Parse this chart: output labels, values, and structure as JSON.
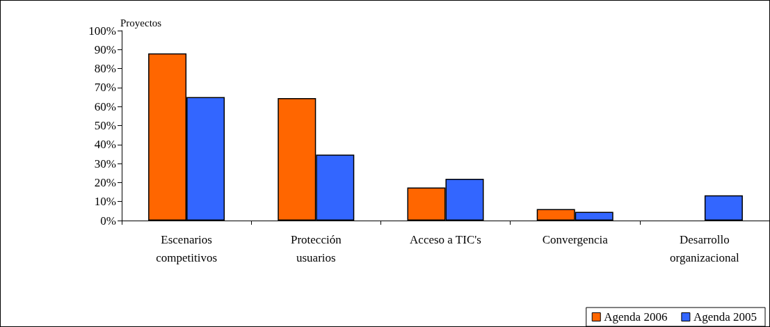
{
  "chart_data": {
    "type": "bar",
    "ylabel": "Proyectos",
    "categories": [
      "Escenarios\ncompetitivos",
      "Protección\nusuarios",
      "Acceso a TIC's",
      "Convergencia",
      "Desarrollo\norganizacional"
    ],
    "series": [
      {
        "name": "Agenda 2006",
        "color": "#ff6600",
        "values": [
          88,
          64.5,
          17.4,
          6,
          null
        ]
      },
      {
        "name": "Agenda 2005",
        "color": "#3366ff",
        "values": [
          65,
          34.7,
          22,
          4.6,
          13.3
        ]
      }
    ],
    "ylim": [
      0,
      100
    ],
    "yticks": [
      {
        "value": 0,
        "label": "0%"
      },
      {
        "value": 10,
        "label": "10%"
      },
      {
        "value": 20,
        "label": "20%"
      },
      {
        "value": 30,
        "label": "30%"
      },
      {
        "value": 40,
        "label": "40%"
      },
      {
        "value": 50,
        "label": "50%"
      },
      {
        "value": 60,
        "label": "60%"
      },
      {
        "value": 70,
        "label": "70%"
      },
      {
        "value": 80,
        "label": "80%"
      },
      {
        "value": 90,
        "label": "90%"
      },
      {
        "value": 100,
        "label": "100%"
      }
    ],
    "grid": false,
    "legend": "bottom right"
  }
}
